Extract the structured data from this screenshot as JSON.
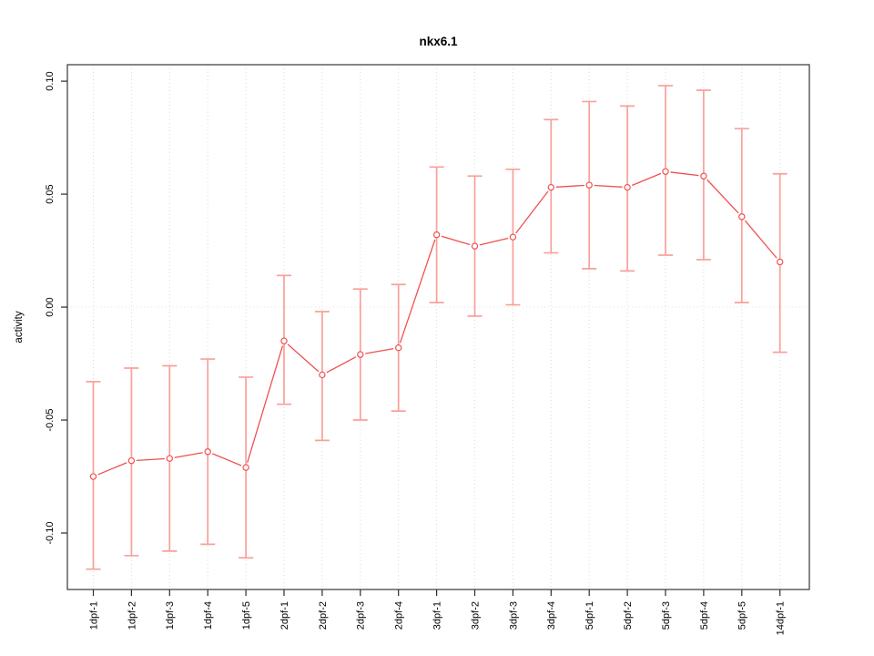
{
  "chart_data": {
    "type": "line",
    "title": "nkx6.1",
    "xlabel": "",
    "ylabel": "activity",
    "legend": "none",
    "grid": "dotted vertical line at each category; dotted horizontal line at 0",
    "categories": [
      "1dpf-1",
      "1dpf-2",
      "1dpf-3",
      "1dpf-4",
      "1dpf-5",
      "2dpf-1",
      "2dpf-2",
      "2dpf-3",
      "2dpf-4",
      "3dpf-1",
      "3dpf-2",
      "3dpf-3",
      "3dpf-4",
      "5dpf-1",
      "5dpf-2",
      "5dpf-3",
      "5dpf-4",
      "5dpf-5",
      "14dpf-1"
    ],
    "series": [
      {
        "name": "activity",
        "marker": "open-circle",
        "values": [
          -0.075,
          -0.068,
          -0.067,
          -0.064,
          -0.071,
          -0.015,
          -0.03,
          -0.021,
          -0.018,
          0.032,
          0.027,
          0.031,
          0.053,
          0.054,
          0.053,
          0.06,
          0.058,
          0.04,
          0.02
        ],
        "error_low": [
          -0.116,
          -0.11,
          -0.108,
          -0.105,
          -0.111,
          -0.043,
          -0.059,
          -0.05,
          -0.046,
          0.002,
          -0.004,
          0.001,
          0.024,
          0.017,
          0.016,
          0.023,
          0.021,
          0.002,
          -0.02
        ],
        "error_high": [
          -0.033,
          -0.027,
          -0.026,
          -0.023,
          -0.031,
          0.014,
          -0.002,
          0.008,
          0.01,
          0.062,
          0.058,
          0.061,
          0.083,
          0.091,
          0.089,
          0.098,
          0.096,
          0.079,
          0.059
        ]
      }
    ],
    "ytick_values": [
      -0.1,
      -0.05,
      0.0,
      0.05,
      0.1
    ],
    "ytick_labels": [
      "-0.10",
      "-0.05",
      "0.00",
      "0.05",
      "0.10"
    ],
    "ylim": [
      -0.125,
      0.1073
    ],
    "colors": {
      "line": "#f05050",
      "point_stroke": "#f05050",
      "point_fill": "#ffffff",
      "error_bar": "#f9a09a",
      "grid": "#dadada",
      "zero_line": "#e0e0e0",
      "frame": "#454545",
      "tick": "#2b2b2b",
      "text": "#000000"
    }
  }
}
